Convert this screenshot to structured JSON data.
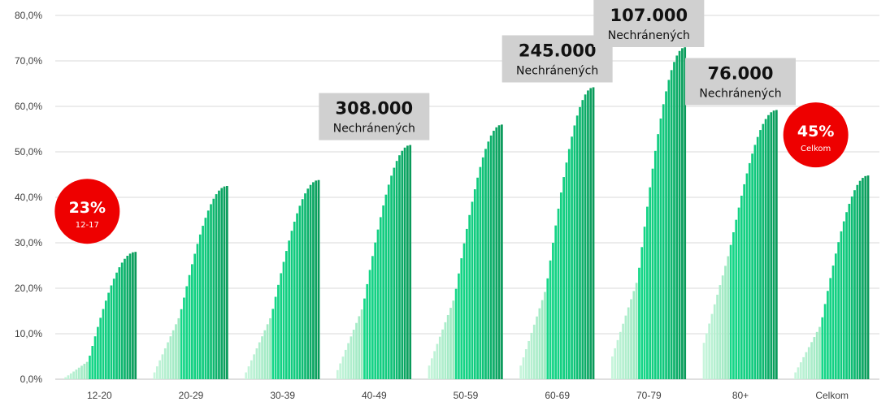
{
  "chart_data": {
    "type": "bar",
    "title": "",
    "xlabel": "",
    "ylabel": "",
    "ylim": [
      0,
      80
    ],
    "yticks": [
      "0,0%",
      "10,0%",
      "20,0%",
      "30,0%",
      "40,0%",
      "50,0%",
      "60,0%",
      "70,0%",
      "80,0%"
    ],
    "grid": true,
    "colors": {
      "light": "#c8f5dc",
      "mid": "#17d98a",
      "dark": "#0a9a5a",
      "badge": "#ee0000",
      "box": "#d0d0d0"
    },
    "groups": [
      {
        "category": "12-20",
        "start": 0.0,
        "mid": 4.0,
        "end": 28.0
      },
      {
        "category": "20-29",
        "start": 1.5,
        "mid": 14.0,
        "end": 42.5
      },
      {
        "category": "30-39",
        "start": 1.5,
        "mid": 14.0,
        "end": 43.8
      },
      {
        "category": "40-49",
        "start": 2.0,
        "mid": 16.0,
        "end": 51.5
      },
      {
        "category": "50-59",
        "start": 3.0,
        "mid": 18.0,
        "end": 56.0
      },
      {
        "category": "60-69",
        "start": 3.0,
        "mid": 20.0,
        "end": 64.2
      },
      {
        "category": "70-79",
        "start": 5.0,
        "mid": 22.0,
        "end": 73.0
      },
      {
        "category": "80+",
        "start": 8.0,
        "mid": 28.0,
        "end": 59.2
      },
      {
        "category": "Celkom",
        "start": 1.5,
        "mid": 12.0,
        "end": 44.8
      }
    ],
    "annotations": [
      {
        "group": "40-49",
        "value": "308.000",
        "label": "Nechránených"
      },
      {
        "group": "60-69",
        "value": "245.000",
        "label": "Nechránených"
      },
      {
        "group": "70-79",
        "value": "107.000",
        "label": "Nechránených"
      },
      {
        "group": "80+",
        "value": "76.000",
        "label": "Nechránených"
      }
    ],
    "badges": [
      {
        "group": "12-20",
        "value": "23%",
        "label": "12-17"
      },
      {
        "group": "Celkom",
        "value": "45%",
        "label": "Celkom"
      }
    ]
  }
}
